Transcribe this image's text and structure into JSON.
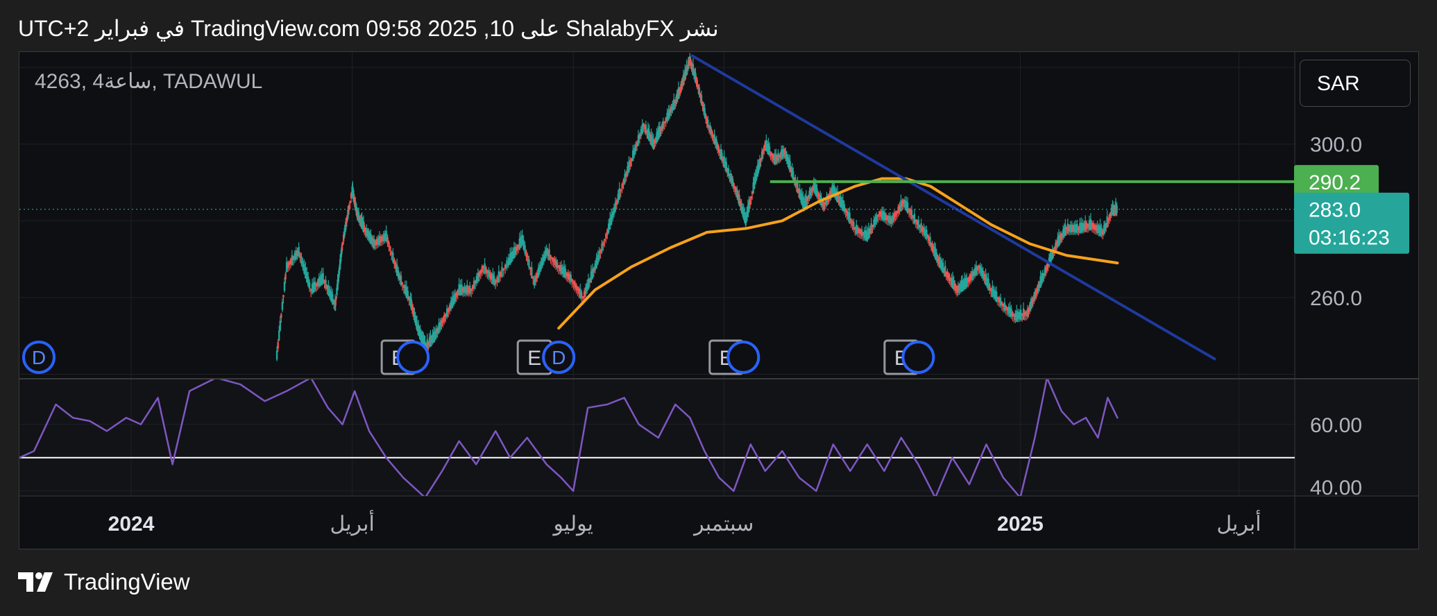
{
  "header": {
    "title": "نشر ShalabyFX على TradingView.com 09:58 2025 ,10 في فبراير UTC+2"
  },
  "symbol_label": "4263, 4ساعة, TADAWUL",
  "currency": "SAR",
  "brand": {
    "name": "TradingView",
    "logo_icon": "tradingview-logo-icon"
  },
  "colors": {
    "background": "#0e0f12",
    "candle_up": "#26a69a",
    "candle_down": "#ef5350",
    "ma_line": "#f7a21b",
    "trendline": "#1e3a9f",
    "resistance_line": "#4caf50",
    "rsi_line": "#7e57c2",
    "price_badge": "#26a69a",
    "resistance_badge": "#4caf50"
  },
  "chart_data": [
    {
      "type": "line",
      "panel": "price",
      "y_ticks": [
        "300.0",
        "260.0"
      ],
      "ylim": [
        239,
        324
      ],
      "x_ticks": [
        {
          "date": "2024-01-01",
          "label": "2024"
        },
        {
          "date": "2024-04-01",
          "label": "أبريل"
        },
        {
          "date": "2024-07-01",
          "label": "يوليو"
        },
        {
          "date": "2024-09-01",
          "label": "سبتمبر"
        },
        {
          "date": "2025-01-01",
          "label": "2025"
        },
        {
          "date": "2025-04-01",
          "label": "أبريل"
        }
      ],
      "xlim": [
        "2023-11-16",
        "2025-04-24"
      ],
      "series": [
        {
          "role": "price-close",
          "points": [
            [
              "2024-03-01",
              245
            ],
            [
              "2024-03-05",
              268
            ],
            [
              "2024-03-10",
              272
            ],
            [
              "2024-03-15",
              262
            ],
            [
              "2024-03-20",
              265
            ],
            [
              "2024-03-25",
              258
            ],
            [
              "2024-03-28",
              274
            ],
            [
              "2024-04-01",
              288
            ],
            [
              "2024-04-03",
              282
            ],
            [
              "2024-04-06",
              278
            ],
            [
              "2024-04-10",
              274
            ],
            [
              "2024-04-15",
              276
            ],
            [
              "2024-04-20",
              266
            ],
            [
              "2024-04-25",
              259
            ],
            [
              "2024-04-28",
              252
            ],
            [
              "2024-05-01",
              247
            ],
            [
              "2024-05-05",
              250
            ],
            [
              "2024-05-10",
              256
            ],
            [
              "2024-05-15",
              262
            ],
            [
              "2024-05-20",
              262
            ],
            [
              "2024-05-25",
              268
            ],
            [
              "2024-05-30",
              264
            ],
            [
              "2024-06-05",
              270
            ],
            [
              "2024-06-10",
              275
            ],
            [
              "2024-06-15",
              264
            ],
            [
              "2024-06-20",
              272
            ],
            [
              "2024-06-25",
              268
            ],
            [
              "2024-06-30",
              265
            ],
            [
              "2024-07-05",
              260
            ],
            [
              "2024-07-10",
              268
            ],
            [
              "2024-07-15",
              277
            ],
            [
              "2024-07-20",
              287
            ],
            [
              "2024-07-25",
              296
            ],
            [
              "2024-07-30",
              305
            ],
            [
              "2024-08-03",
              300
            ],
            [
              "2024-08-07",
              305
            ],
            [
              "2024-08-12",
              311
            ],
            [
              "2024-08-15",
              316
            ],
            [
              "2024-08-18",
              322
            ],
            [
              "2024-08-21",
              316
            ],
            [
              "2024-08-25",
              306
            ],
            [
              "2024-08-29",
              300
            ],
            [
              "2024-09-02",
              294
            ],
            [
              "2024-09-06",
              288
            ],
            [
              "2024-09-10",
              280
            ],
            [
              "2024-09-14",
              291
            ],
            [
              "2024-09-18",
              300
            ],
            [
              "2024-09-22",
              296
            ],
            [
              "2024-09-26",
              298
            ],
            [
              "2024-09-30",
              291
            ],
            [
              "2024-10-04",
              284
            ],
            [
              "2024-10-08",
              289
            ],
            [
              "2024-10-12",
              284
            ],
            [
              "2024-10-16",
              288
            ],
            [
              "2024-10-20",
              284
            ],
            [
              "2024-10-25",
              278
            ],
            [
              "2024-10-30",
              276
            ],
            [
              "2024-11-04",
              282
            ],
            [
              "2024-11-09",
              280
            ],
            [
              "2024-11-14",
              285
            ],
            [
              "2024-11-19",
              280
            ],
            [
              "2024-11-24",
              276
            ],
            [
              "2024-11-28",
              270
            ],
            [
              "2024-12-02",
              266
            ],
            [
              "2024-12-06",
              262
            ],
            [
              "2024-12-10",
              264
            ],
            [
              "2024-12-15",
              268
            ],
            [
              "2024-12-20",
              262
            ],
            [
              "2024-12-25",
              258
            ],
            [
              "2024-12-30",
              255
            ],
            [
              "2025-01-04",
              256
            ],
            [
              "2025-01-08",
              262
            ],
            [
              "2025-01-12",
              268
            ],
            [
              "2025-01-16",
              274
            ],
            [
              "2025-01-20",
              278
            ],
            [
              "2025-01-25",
              278
            ],
            [
              "2025-01-30",
              279
            ],
            [
              "2025-02-04",
              277
            ],
            [
              "2025-02-08",
              283
            ],
            [
              "2025-02-10",
              283.0
            ]
          ]
        },
        {
          "role": "moving-average",
          "points": [
            [
              "2024-06-25",
              252
            ],
            [
              "2024-07-10",
              262
            ],
            [
              "2024-07-25",
              268
            ],
            [
              "2024-08-10",
              273
            ],
            [
              "2024-08-25",
              277
            ],
            [
              "2024-09-10",
              278
            ],
            [
              "2024-09-25",
              280
            ],
            [
              "2024-10-10",
              285
            ],
            [
              "2024-10-25",
              289
            ],
            [
              "2024-11-05",
              291
            ],
            [
              "2024-11-15",
              291
            ],
            [
              "2024-11-25",
              289
            ],
            [
              "2024-12-05",
              285
            ],
            [
              "2024-12-20",
              279
            ],
            [
              "2025-01-05",
              274
            ],
            [
              "2025-01-20",
              271
            ],
            [
              "2025-02-10",
              269
            ]
          ]
        },
        {
          "role": "trendline",
          "points": [
            [
              "2024-08-19",
              323
            ],
            [
              "2025-03-22",
              244
            ]
          ]
        },
        {
          "role": "resistance",
          "points": [
            [
              "2024-09-20",
              290.2
            ],
            [
              "2025-04-24",
              290.2
            ]
          ]
        }
      ],
      "labels": [
        {
          "text": "290.2",
          "value": 290.2,
          "kind": "resistance"
        },
        {
          "text": "283.0",
          "value": 283.0,
          "kind": "last-price",
          "countdown": "03:16:23"
        }
      ],
      "event_markers": [
        {
          "date": "2023-11-24",
          "kind": "dividend",
          "label": "D"
        },
        {
          "date": "2024-04-20",
          "kind": "earnings",
          "label": "E"
        },
        {
          "date": "2024-04-26",
          "kind": "dividend",
          "label": ""
        },
        {
          "date": "2024-06-15",
          "kind": "earnings",
          "label": "E"
        },
        {
          "date": "2024-06-25",
          "kind": "dividend",
          "label": "D"
        },
        {
          "date": "2024-09-02",
          "kind": "earnings",
          "label": "E"
        },
        {
          "date": "2024-09-09",
          "kind": "dividend",
          "label": ""
        },
        {
          "date": "2024-11-13",
          "kind": "earnings",
          "label": "E"
        },
        {
          "date": "2024-11-20",
          "kind": "dividend",
          "label": ""
        }
      ]
    },
    {
      "type": "line",
      "panel": "rsi",
      "y_ticks": [
        "60.00",
        "40.00"
      ],
      "ylim": [
        38.5,
        73.5
      ],
      "reference_line": 50,
      "series": [
        {
          "role": "rsi",
          "points": [
            [
              "2023-11-16",
              50
            ],
            [
              "2023-11-22",
              52
            ],
            [
              "2023-12-01",
              66
            ],
            [
              "2023-12-08",
              62
            ],
            [
              "2023-12-15",
              61
            ],
            [
              "2023-12-22",
              58
            ],
            [
              "2023-12-30",
              62
            ],
            [
              "2024-01-05",
              60
            ],
            [
              "2024-01-12",
              68
            ],
            [
              "2024-01-18",
              48
            ],
            [
              "2024-01-25",
              70
            ],
            [
              "2024-02-05",
              74
            ],
            [
              "2024-02-15",
              72
            ],
            [
              "2024-02-25",
              67
            ],
            [
              "2024-03-05",
              70
            ],
            [
              "2024-03-15",
              74
            ],
            [
              "2024-03-22",
              65
            ],
            [
              "2024-03-28",
              60
            ],
            [
              "2024-04-02",
              70
            ],
            [
              "2024-04-08",
              58
            ],
            [
              "2024-04-15",
              50
            ],
            [
              "2024-04-22",
              44
            ],
            [
              "2024-05-01",
              38
            ],
            [
              "2024-05-08",
              46
            ],
            [
              "2024-05-15",
              55
            ],
            [
              "2024-05-22",
              48
            ],
            [
              "2024-05-30",
              58
            ],
            [
              "2024-06-05",
              50
            ],
            [
              "2024-06-12",
              56
            ],
            [
              "2024-06-20",
              48
            ],
            [
              "2024-06-26",
              44
            ],
            [
              "2024-07-01",
              40
            ],
            [
              "2024-07-07",
              65
            ],
            [
              "2024-07-15",
              66
            ],
            [
              "2024-07-22",
              68
            ],
            [
              "2024-07-28",
              60
            ],
            [
              "2024-08-05",
              56
            ],
            [
              "2024-08-12",
              66
            ],
            [
              "2024-08-18",
              62
            ],
            [
              "2024-08-24",
              52
            ],
            [
              "2024-08-30",
              44
            ],
            [
              "2024-09-05",
              40
            ],
            [
              "2024-09-12",
              54
            ],
            [
              "2024-09-18",
              46
            ],
            [
              "2024-09-25",
              52
            ],
            [
              "2024-10-02",
              44
            ],
            [
              "2024-10-09",
              40
            ],
            [
              "2024-10-16",
              54
            ],
            [
              "2024-10-23",
              46
            ],
            [
              "2024-10-30",
              54
            ],
            [
              "2024-11-06",
              46
            ],
            [
              "2024-11-13",
              56
            ],
            [
              "2024-11-20",
              48
            ],
            [
              "2024-11-27",
              38
            ],
            [
              "2024-12-04",
              50
            ],
            [
              "2024-12-11",
              42
            ],
            [
              "2024-12-18",
              54
            ],
            [
              "2024-12-25",
              44
            ],
            [
              "2025-01-01",
              38
            ],
            [
              "2025-01-07",
              56
            ],
            [
              "2025-01-12",
              74
            ],
            [
              "2025-01-18",
              64
            ],
            [
              "2025-01-23",
              60
            ],
            [
              "2025-01-28",
              62
            ],
            [
              "2025-02-02",
              56
            ],
            [
              "2025-02-06",
              68
            ],
            [
              "2025-02-10",
              62
            ]
          ]
        }
      ]
    }
  ]
}
